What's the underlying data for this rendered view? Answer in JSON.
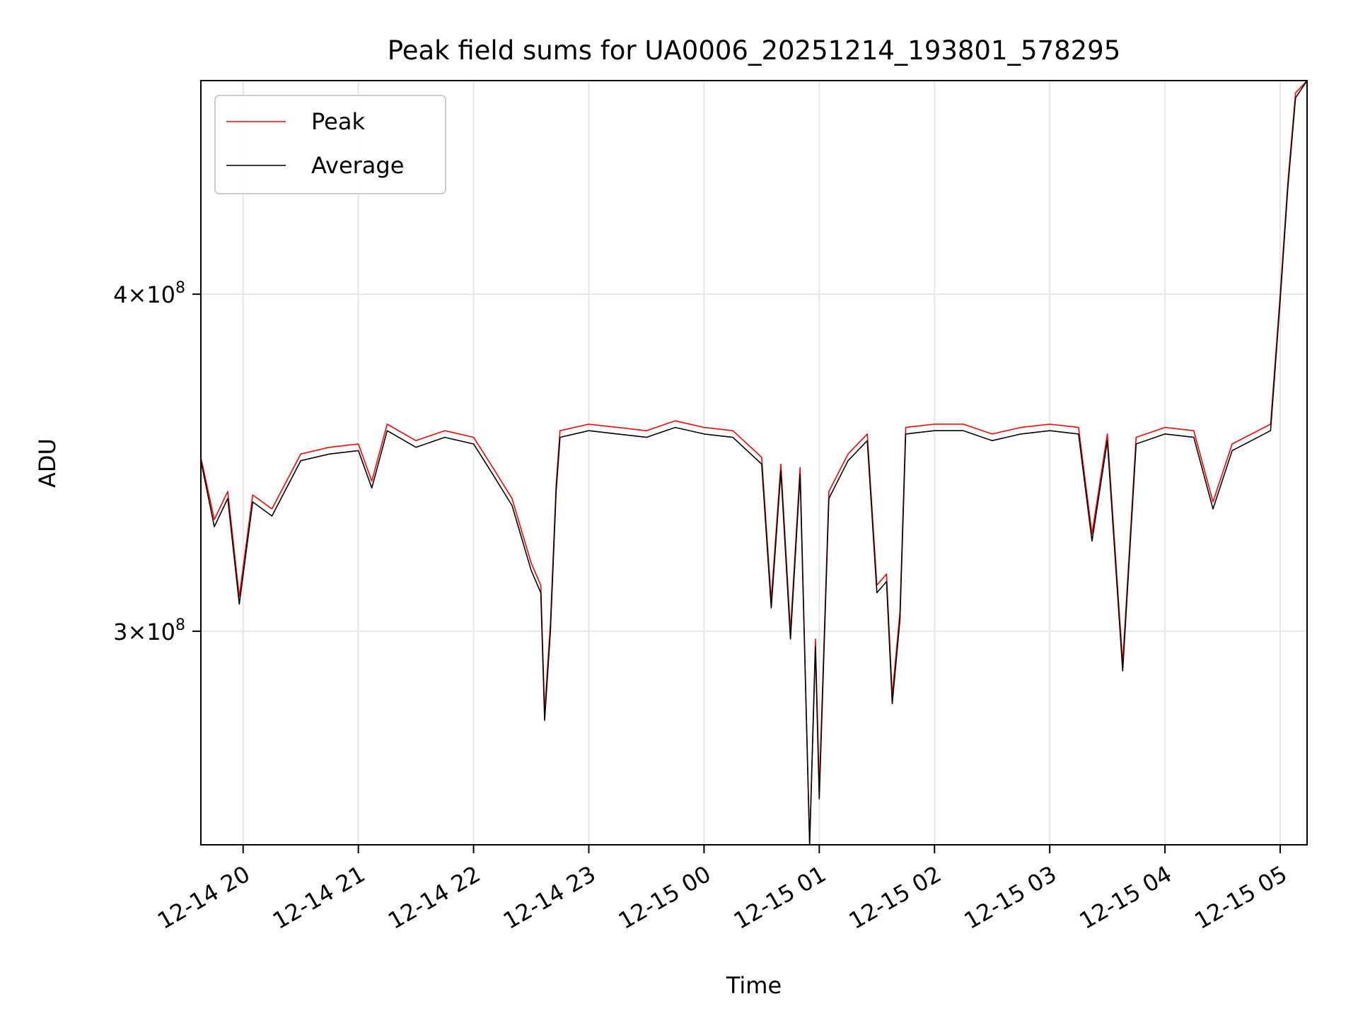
{
  "chart_data": {
    "type": "line",
    "title": "Peak field sums for UA0006_20251214_193801_578295",
    "xlabel": "Time",
    "ylabel": "ADU",
    "x_is_time": true,
    "xlim": [
      "2025-12-14 19:38",
      "2025-12-15 05:14"
    ],
    "ylim": [
      250000000,
      480000000
    ],
    "yscale": "log",
    "grid": true,
    "legend_position": "upper left",
    "xticks": [
      {
        "value": "2025-12-14 20:00",
        "label": "12-14 20"
      },
      {
        "value": "2025-12-14 21:00",
        "label": "12-14 21"
      },
      {
        "value": "2025-12-14 22:00",
        "label": "12-14 22"
      },
      {
        "value": "2025-12-14 23:00",
        "label": "12-14 23"
      },
      {
        "value": "2025-12-15 00:00",
        "label": "12-15 00"
      },
      {
        "value": "2025-12-15 01:00",
        "label": "12-15 01"
      },
      {
        "value": "2025-12-15 02:00",
        "label": "12-15 02"
      },
      {
        "value": "2025-12-15 03:00",
        "label": "12-15 03"
      },
      {
        "value": "2025-12-15 04:00",
        "label": "12-15 04"
      },
      {
        "value": "2025-12-15 05:00",
        "label": "12-15 05"
      }
    ],
    "yticks": [
      {
        "value": 300000000,
        "mantissa": "3",
        "base": "10",
        "exp": "8"
      },
      {
        "value": 400000000,
        "mantissa": "4",
        "base": "10",
        "exp": "8"
      }
    ],
    "series": [
      {
        "name": "Peak",
        "color": "#ff0000",
        "points": [
          [
            "2025-12-14 19:38",
            348000000
          ],
          [
            "2025-12-14 19:45",
            330000000
          ],
          [
            "2025-12-14 19:52",
            338000000
          ],
          [
            "2025-12-14 19:58",
            309000000
          ],
          [
            "2025-12-14 20:05",
            337000000
          ],
          [
            "2025-12-14 20:15",
            333000000
          ],
          [
            "2025-12-14 20:30",
            349000000
          ],
          [
            "2025-12-14 20:45",
            351000000
          ],
          [
            "2025-12-14 21:00",
            352000000
          ],
          [
            "2025-12-14 21:07",
            341000000
          ],
          [
            "2025-12-14 21:15",
            358000000
          ],
          [
            "2025-12-14 21:30",
            353000000
          ],
          [
            "2025-12-14 21:45",
            356000000
          ],
          [
            "2025-12-14 22:00",
            354000000
          ],
          [
            "2025-12-14 22:10",
            345000000
          ],
          [
            "2025-12-14 22:20",
            336000000
          ],
          [
            "2025-12-14 22:30",
            318000000
          ],
          [
            "2025-12-14 22:35",
            312000000
          ],
          [
            "2025-12-14 22:37",
            280000000
          ],
          [
            "2025-12-14 22:40",
            302000000
          ],
          [
            "2025-12-14 22:43",
            340000000
          ],
          [
            "2025-12-14 22:45",
            356000000
          ],
          [
            "2025-12-14 23:00",
            358000000
          ],
          [
            "2025-12-14 23:15",
            357000000
          ],
          [
            "2025-12-14 23:30",
            356000000
          ],
          [
            "2025-12-14 23:45",
            359000000
          ],
          [
            "2025-12-15 00:00",
            357000000
          ],
          [
            "2025-12-15 00:15",
            356000000
          ],
          [
            "2025-12-15 00:30",
            348000000
          ],
          [
            "2025-12-15 00:35",
            308000000
          ],
          [
            "2025-12-15 00:40",
            346000000
          ],
          [
            "2025-12-15 00:45",
            300000000
          ],
          [
            "2025-12-15 00:50",
            345000000
          ],
          [
            "2025-12-15 00:55",
            250000000
          ],
          [
            "2025-12-15 00:58",
            298000000
          ],
          [
            "2025-12-15 01:00",
            262000000
          ],
          [
            "2025-12-15 01:05",
            338000000
          ],
          [
            "2025-12-15 01:15",
            349000000
          ],
          [
            "2025-12-15 01:25",
            355000000
          ],
          [
            "2025-12-15 01:30",
            312000000
          ],
          [
            "2025-12-15 01:35",
            315000000
          ],
          [
            "2025-12-15 01:38",
            284000000
          ],
          [
            "2025-12-15 01:42",
            305000000
          ],
          [
            "2025-12-15 01:45",
            357000000
          ],
          [
            "2025-12-15 02:00",
            358000000
          ],
          [
            "2025-12-15 02:15",
            358000000
          ],
          [
            "2025-12-15 02:30",
            355000000
          ],
          [
            "2025-12-15 02:45",
            357000000
          ],
          [
            "2025-12-15 03:00",
            358000000
          ],
          [
            "2025-12-15 03:15",
            357000000
          ],
          [
            "2025-12-15 03:22",
            326000000
          ],
          [
            "2025-12-15 03:30",
            355000000
          ],
          [
            "2025-12-15 03:38",
            292000000
          ],
          [
            "2025-12-15 03:45",
            354000000
          ],
          [
            "2025-12-15 04:00",
            357000000
          ],
          [
            "2025-12-15 04:15",
            356000000
          ],
          [
            "2025-12-15 04:25",
            335000000
          ],
          [
            "2025-12-15 04:35",
            352000000
          ],
          [
            "2025-12-15 04:55",
            358000000
          ],
          [
            "2025-12-15 05:00",
            400000000
          ],
          [
            "2025-12-15 05:04",
            440000000
          ],
          [
            "2025-12-15 05:08",
            475000000
          ],
          [
            "2025-12-15 05:14",
            480000000
          ]
        ]
      },
      {
        "name": "Average",
        "color": "#000000",
        "points": [
          [
            "2025-12-14 19:38",
            347000000
          ],
          [
            "2025-12-14 19:45",
            328000000
          ],
          [
            "2025-12-14 19:52",
            336000000
          ],
          [
            "2025-12-14 19:58",
            307000000
          ],
          [
            "2025-12-14 20:05",
            335000000
          ],
          [
            "2025-12-14 20:15",
            331000000
          ],
          [
            "2025-12-14 20:30",
            347000000
          ],
          [
            "2025-12-14 20:45",
            349000000
          ],
          [
            "2025-12-14 21:00",
            350000000
          ],
          [
            "2025-12-14 21:07",
            339000000
          ],
          [
            "2025-12-14 21:15",
            356000000
          ],
          [
            "2025-12-14 21:30",
            351000000
          ],
          [
            "2025-12-14 21:45",
            354000000
          ],
          [
            "2025-12-14 22:00",
            352000000
          ],
          [
            "2025-12-14 22:10",
            343000000
          ],
          [
            "2025-12-14 22:20",
            334000000
          ],
          [
            "2025-12-14 22:30",
            316000000
          ],
          [
            "2025-12-14 22:35",
            310000000
          ],
          [
            "2025-12-14 22:37",
            278000000
          ],
          [
            "2025-12-14 22:40",
            300000000
          ],
          [
            "2025-12-14 22:43",
            338000000
          ],
          [
            "2025-12-14 22:45",
            354000000
          ],
          [
            "2025-12-14 23:00",
            356000000
          ],
          [
            "2025-12-14 23:15",
            355000000
          ],
          [
            "2025-12-14 23:30",
            354000000
          ],
          [
            "2025-12-14 23:45",
            357000000
          ],
          [
            "2025-12-15 00:00",
            355000000
          ],
          [
            "2025-12-15 00:15",
            354000000
          ],
          [
            "2025-12-15 00:30",
            346000000
          ],
          [
            "2025-12-15 00:35",
            306000000
          ],
          [
            "2025-12-15 00:40",
            344000000
          ],
          [
            "2025-12-15 00:45",
            298000000
          ],
          [
            "2025-12-15 00:50",
            343000000
          ],
          [
            "2025-12-15 00:55",
            250000000
          ],
          [
            "2025-12-15 00:58",
            296000000
          ],
          [
            "2025-12-15 01:00",
            260000000
          ],
          [
            "2025-12-15 01:05",
            336000000
          ],
          [
            "2025-12-15 01:15",
            347000000
          ],
          [
            "2025-12-15 01:25",
            353000000
          ],
          [
            "2025-12-15 01:30",
            310000000
          ],
          [
            "2025-12-15 01:35",
            313000000
          ],
          [
            "2025-12-15 01:38",
            282000000
          ],
          [
            "2025-12-15 01:42",
            303000000
          ],
          [
            "2025-12-15 01:45",
            355000000
          ],
          [
            "2025-12-15 02:00",
            356000000
          ],
          [
            "2025-12-15 02:15",
            356000000
          ],
          [
            "2025-12-15 02:30",
            353000000
          ],
          [
            "2025-12-15 02:45",
            355000000
          ],
          [
            "2025-12-15 03:00",
            356000000
          ],
          [
            "2025-12-15 03:15",
            355000000
          ],
          [
            "2025-12-15 03:22",
            324000000
          ],
          [
            "2025-12-15 03:30",
            353000000
          ],
          [
            "2025-12-15 03:38",
            290000000
          ],
          [
            "2025-12-15 03:45",
            352000000
          ],
          [
            "2025-12-15 04:00",
            355000000
          ],
          [
            "2025-12-15 04:15",
            354000000
          ],
          [
            "2025-12-15 04:25",
            333000000
          ],
          [
            "2025-12-15 04:35",
            350000000
          ],
          [
            "2025-12-15 04:55",
            356000000
          ],
          [
            "2025-12-15 05:00",
            398000000
          ],
          [
            "2025-12-15 05:04",
            438000000
          ],
          [
            "2025-12-15 05:08",
            473000000
          ],
          [
            "2025-12-15 05:14",
            480000000
          ]
        ]
      }
    ]
  }
}
